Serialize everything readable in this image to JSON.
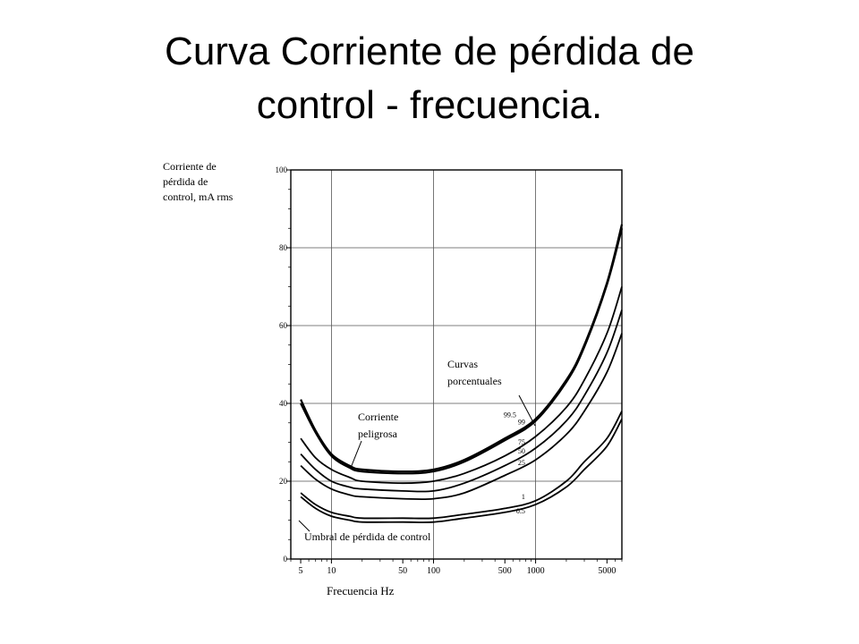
{
  "slide": {
    "title_line1": "Curva Corriente de pérdida de",
    "title_line2": "control - frecuencia."
  },
  "chart_data": {
    "type": "line",
    "ylabel_lines": [
      "Corriente de",
      "pérdida de",
      "control, mA rms"
    ],
    "xlabel": "Frecuencia Hz",
    "x_scale": "log",
    "xlim": [
      4,
      7000
    ],
    "ylim": [
      0,
      100
    ],
    "y_ticks": [
      0,
      20,
      40,
      60,
      80,
      100
    ],
    "y_tick_labels": [
      "0",
      "20",
      "40",
      "60",
      "80",
      "100"
    ],
    "x_ticks": [
      5,
      10,
      50,
      100,
      500,
      1000,
      5000
    ],
    "x_tick_labels": [
      "5",
      "10",
      "50",
      "100",
      "500",
      "1000",
      "5000"
    ],
    "grid": true,
    "series": [
      {
        "name": "99.5",
        "x": [
          5,
          7,
          10,
          15,
          20,
          50,
          100,
          200,
          500,
          1000,
          2000,
          3000,
          5000,
          7000
        ],
        "y": [
          41,
          33,
          27,
          24,
          23,
          22.5,
          23,
          25.5,
          31,
          36,
          46,
          55,
          71,
          86
        ]
      },
      {
        "name": "99",
        "x": [
          5,
          7,
          10,
          15,
          20,
          50,
          100,
          200,
          500,
          1000,
          2000,
          3000,
          5000,
          7000
        ],
        "y": [
          40,
          32.5,
          26.5,
          23.5,
          22.5,
          22,
          22.5,
          25,
          30.5,
          35.5,
          45.5,
          54.5,
          70.5,
          85
        ]
      },
      {
        "name": "75",
        "x": [
          5,
          7,
          10,
          15,
          20,
          50,
          100,
          200,
          500,
          1000,
          2000,
          3000,
          5000,
          7000
        ],
        "y": [
          31,
          26,
          23,
          21,
          20,
          19.5,
          20,
          22,
          26.5,
          31.5,
          39,
          46,
          58,
          70
        ]
      },
      {
        "name": "50",
        "x": [
          5,
          7,
          10,
          15,
          20,
          50,
          100,
          200,
          500,
          1000,
          2000,
          3000,
          5000,
          7000
        ],
        "y": [
          27,
          23,
          20,
          18.5,
          18,
          17.5,
          17.5,
          19.5,
          24,
          28.5,
          35.5,
          42,
          53,
          64
        ]
      },
      {
        "name": "25",
        "x": [
          5,
          7,
          10,
          15,
          20,
          50,
          100,
          200,
          500,
          1000,
          2000,
          3000,
          5000,
          7000
        ],
        "y": [
          24,
          20.5,
          18,
          16.5,
          16,
          15.5,
          15.5,
          17,
          21.5,
          25.5,
          32,
          38,
          48,
          58
        ]
      },
      {
        "name": "1",
        "x": [
          5,
          7,
          10,
          15,
          20,
          50,
          100,
          200,
          500,
          1000,
          2000,
          3000,
          5000,
          7000
        ],
        "y": [
          17,
          14,
          12,
          11,
          10.5,
          10.5,
          10.5,
          11.5,
          13,
          15,
          20,
          25,
          31,
          38
        ]
      },
      {
        "name": "0.5",
        "x": [
          5,
          7,
          10,
          15,
          20,
          50,
          100,
          200,
          500,
          1000,
          2000,
          3000,
          5000,
          7000
        ],
        "y": [
          16,
          13,
          11,
          10,
          9.5,
          9.5,
          9.5,
          10.5,
          12,
          14,
          18.5,
          23,
          29,
          36
        ]
      }
    ],
    "annotations": [
      {
        "lines": [
          "Curvas",
          "porcentuales"
        ]
      },
      {
        "lines": [
          "Corriente",
          "peligrosa"
        ]
      },
      {
        "lines": [
          "Umbral de pérdida de control"
        ]
      }
    ]
  }
}
